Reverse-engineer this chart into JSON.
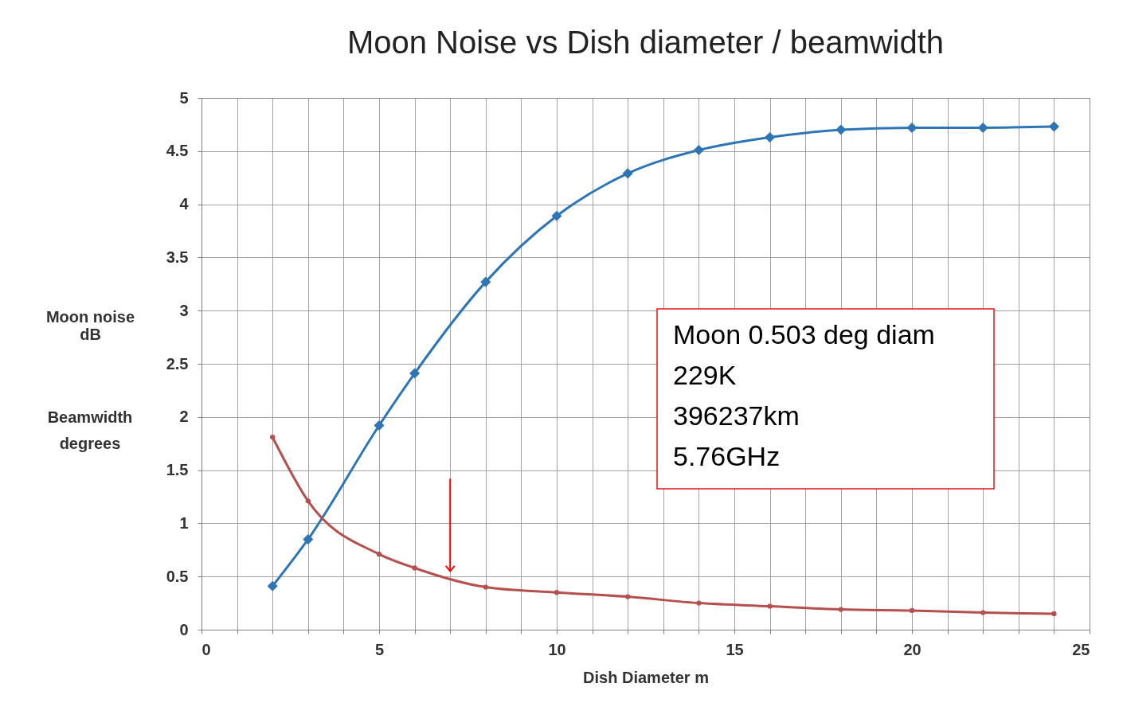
{
  "chart_data": {
    "type": "line",
    "title": "Moon Noise vs Dish diameter / beamwidth",
    "xlabel": "Dish Diameter m",
    "ylabel": "Moon noise\ndB",
    "annotations": [
      "Beamwidth\ndegrees",
      "Moon 0.503 deg diam\n229K\n396237km\n5.76GHz"
    ],
    "x": [
      2,
      3,
      5,
      6,
      8,
      10,
      12,
      14,
      16,
      18,
      20,
      22,
      24
    ],
    "series": [
      {
        "color": "#2e75b6",
        "marker": "diamond",
        "values": [
          0.41,
          0.85,
          1.92,
          2.41,
          3.27,
          3.89,
          4.29,
          4.51,
          4.63,
          4.7,
          4.72,
          4.72,
          4.73
        ]
      },
      {
        "color": "#b5504e",
        "marker": "circle",
        "values": [
          1.81,
          1.21,
          0.71,
          0.58,
          0.4,
          0.35,
          0.31,
          0.25,
          0.22,
          0.19,
          0.18,
          0.16,
          0.15
        ]
      }
    ],
    "xlim": [
      0,
      25
    ],
    "xticks": [
      0,
      {
        "value": 1,
        "label": null
      },
      {
        "value": 2,
        "label": null
      },
      {
        "value": 3,
        "label": null
      },
      {
        "value": 4,
        "label": null
      },
      5,
      {
        "value": 6,
        "label": null
      },
      {
        "value": 7,
        "label": null
      },
      {
        "value": 8,
        "label": null
      },
      {
        "value": 9,
        "label": null
      },
      10,
      {
        "value": 11,
        "label": null
      },
      {
        "value": 12,
        "label": null
      },
      {
        "value": 13,
        "label": null
      },
      {
        "value": 14,
        "label": null
      },
      15,
      {
        "value": 16,
        "label": null
      },
      {
        "value": 17,
        "label": null
      },
      {
        "value": 18,
        "label": null
      },
      {
        "value": 19,
        "label": null
      },
      20,
      {
        "value": 21,
        "label": null
      },
      {
        "value": 22,
        "label": null
      },
      {
        "value": 23,
        "label": null
      },
      {
        "value": 24,
        "label": null
      },
      25
    ],
    "ylim": [
      0,
      5
    ],
    "yticks": [
      0,
      0.5,
      1,
      1.5,
      2,
      2.5,
      3,
      3.5,
      4,
      4.5,
      5
    ],
    "grid": true,
    "line_style": "solid"
  }
}
